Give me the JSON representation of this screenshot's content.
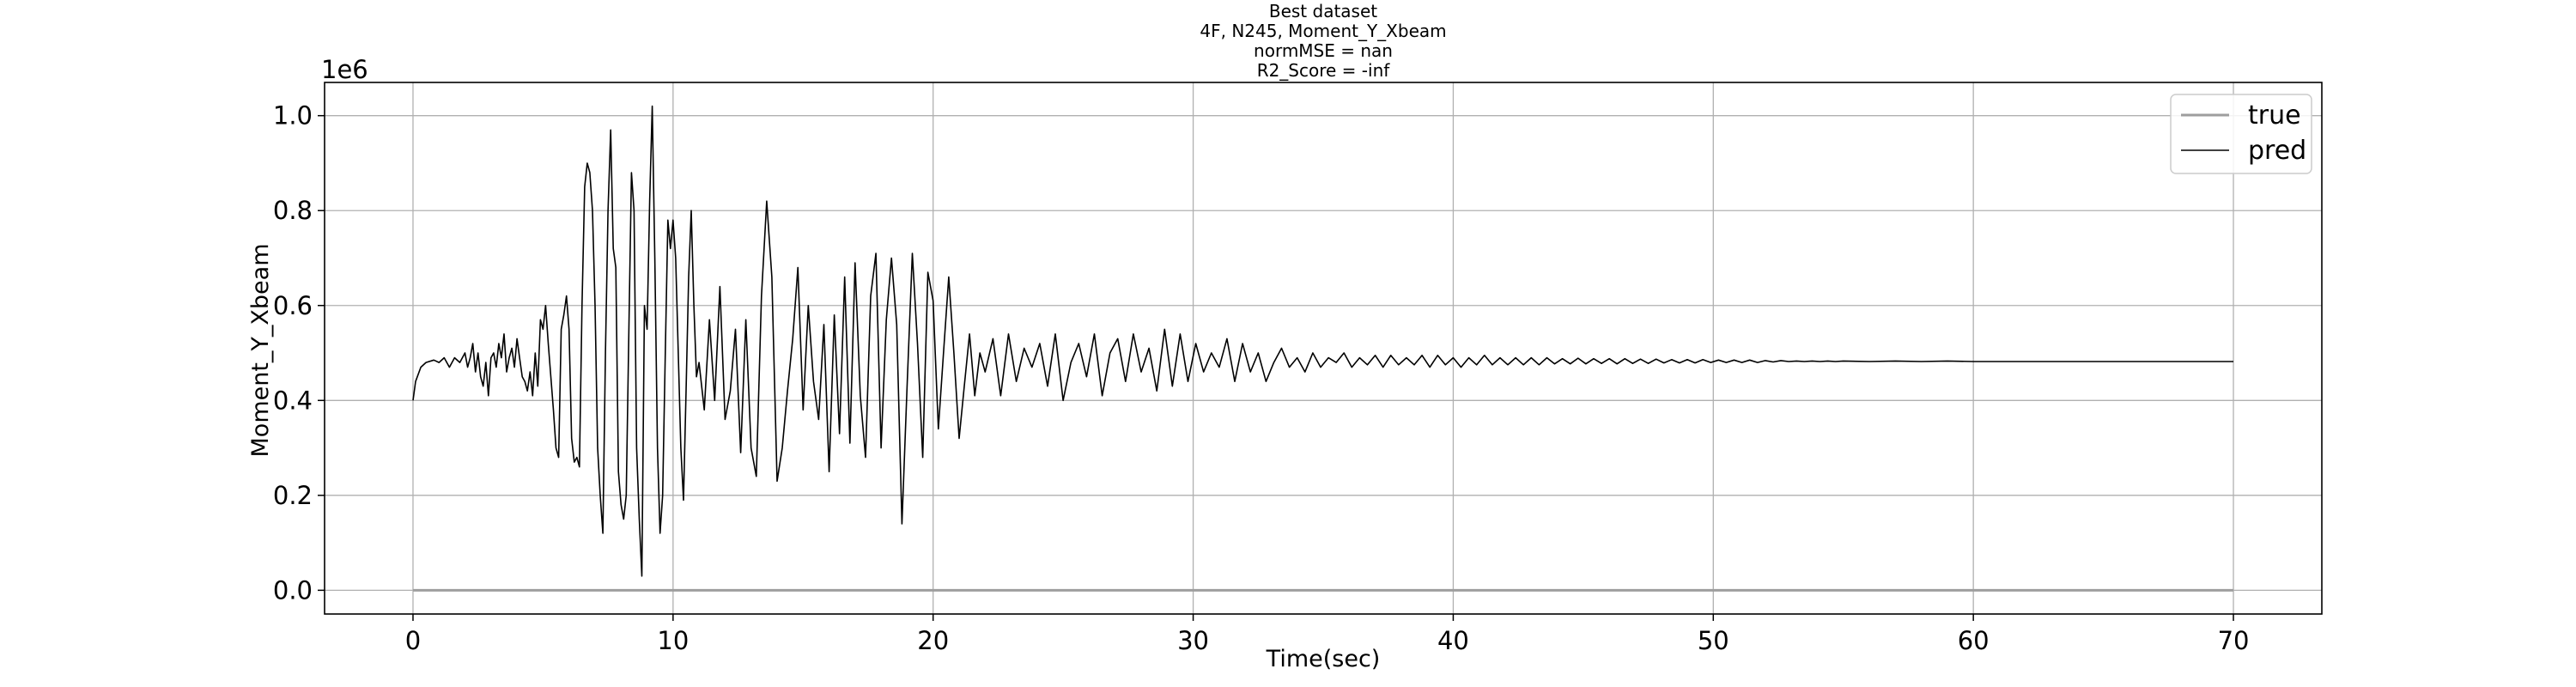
{
  "chart_data": {
    "type": "line",
    "title_lines": [
      "Best dataset",
      "4F, N245, Moment_Y_Xbeam",
      "normMSE = nan",
      "R2_Score = -inf"
    ],
    "xlabel": "Time(sec)",
    "ylabel": "Moment_Y_Xbeam",
    "y_offset_label": "1e6",
    "xlim": [
      -3.4,
      73.4
    ],
    "ylim": [
      -0.05,
      1.07
    ],
    "x_ticks": [
      0,
      10,
      20,
      30,
      40,
      50,
      60,
      70
    ],
    "x_tick_labels": [
      "0",
      "10",
      "20",
      "30",
      "40",
      "50",
      "60",
      "70"
    ],
    "y_ticks": [
      0.0,
      0.2,
      0.4,
      0.6,
      0.8,
      1.0
    ],
    "y_tick_labels": [
      "0.0",
      "0.2",
      "0.4",
      "0.6",
      "0.8",
      "1.0"
    ],
    "grid": true,
    "legend_position": "top-right",
    "series": [
      {
        "name": "true",
        "color": "#9e9e9e",
        "x": [
          0,
          70
        ],
        "y": [
          0.0,
          0.0
        ]
      },
      {
        "name": "pred",
        "color": "#000000",
        "x": [
          0.0,
          0.1,
          0.3,
          0.5,
          0.8,
          1.0,
          1.2,
          1.4,
          1.6,
          1.8,
          2.0,
          2.1,
          2.2,
          2.3,
          2.4,
          2.5,
          2.6,
          2.7,
          2.8,
          2.9,
          3.0,
          3.1,
          3.2,
          3.3,
          3.4,
          3.5,
          3.6,
          3.7,
          3.8,
          3.9,
          4.0,
          4.1,
          4.2,
          4.3,
          4.4,
          4.5,
          4.6,
          4.7,
          4.8,
          4.9,
          5.0,
          5.1,
          5.2,
          5.3,
          5.4,
          5.5,
          5.6,
          5.7,
          5.8,
          5.9,
          6.0,
          6.1,
          6.2,
          6.3,
          6.4,
          6.5,
          6.6,
          6.7,
          6.8,
          6.9,
          7.0,
          7.1,
          7.2,
          7.3,
          7.4,
          7.5,
          7.6,
          7.7,
          7.8,
          7.9,
          8.0,
          8.1,
          8.2,
          8.3,
          8.4,
          8.5,
          8.6,
          8.7,
          8.8,
          8.9,
          9.0,
          9.1,
          9.2,
          9.3,
          9.4,
          9.5,
          9.6,
          9.7,
          9.8,
          9.9,
          10.0,
          10.1,
          10.2,
          10.3,
          10.4,
          10.5,
          10.6,
          10.7,
          10.8,
          10.9,
          11.0,
          11.2,
          11.4,
          11.6,
          11.8,
          12.0,
          12.2,
          12.4,
          12.6,
          12.8,
          13.0,
          13.2,
          13.4,
          13.6,
          13.8,
          14.0,
          14.2,
          14.4,
          14.6,
          14.8,
          15.0,
          15.2,
          15.4,
          15.6,
          15.8,
          16.0,
          16.2,
          16.4,
          16.6,
          16.8,
          17.0,
          17.2,
          17.4,
          17.6,
          17.8,
          18.0,
          18.2,
          18.4,
          18.6,
          18.8,
          19.0,
          19.2,
          19.4,
          19.6,
          19.8,
          20.0,
          20.2,
          20.4,
          20.6,
          20.8,
          21.0,
          21.2,
          21.4,
          21.6,
          21.8,
          22.0,
          22.3,
          22.6,
          22.9,
          23.2,
          23.5,
          23.8,
          24.1,
          24.4,
          24.7,
          25.0,
          25.3,
          25.6,
          25.9,
          26.2,
          26.5,
          26.8,
          27.1,
          27.4,
          27.7,
          28.0,
          28.3,
          28.6,
          28.9,
          29.2,
          29.5,
          29.8,
          30.1,
          30.4,
          30.7,
          31.0,
          31.3,
          31.6,
          31.9,
          32.2,
          32.5,
          32.8,
          33.1,
          33.4,
          33.7,
          34.0,
          34.3,
          34.6,
          34.9,
          35.2,
          35.5,
          35.8,
          36.1,
          36.4,
          36.7,
          37.0,
          37.3,
          37.6,
          37.9,
          38.2,
          38.5,
          38.8,
          39.1,
          39.4,
          39.7,
          40.0,
          40.3,
          40.6,
          40.9,
          41.2,
          41.5,
          41.8,
          42.1,
          42.4,
          42.7,
          43.0,
          43.3,
          43.6,
          43.9,
          44.2,
          44.5,
          44.8,
          45.1,
          45.4,
          45.7,
          46.0,
          46.3,
          46.6,
          46.9,
          47.2,
          47.5,
          47.8,
          48.1,
          48.4,
          48.7,
          49.0,
          49.3,
          49.6,
          49.9,
          50.2,
          50.5,
          50.8,
          51.1,
          51.4,
          51.7,
          52.0,
          52.3,
          52.6,
          52.9,
          53.2,
          53.5,
          53.8,
          54.1,
          54.4,
          54.7,
          55.0,
          56.0,
          57.0,
          58.0,
          59.0,
          60.0,
          61.0,
          62.0,
          63.0,
          64.0,
          65.0,
          66.0,
          67.0,
          68.0,
          69.0,
          70.0
        ],
        "y": [
          0.4,
          0.44,
          0.47,
          0.48,
          0.485,
          0.48,
          0.49,
          0.47,
          0.49,
          0.48,
          0.5,
          0.47,
          0.49,
          0.52,
          0.46,
          0.5,
          0.45,
          0.43,
          0.48,
          0.41,
          0.49,
          0.5,
          0.47,
          0.52,
          0.49,
          0.54,
          0.46,
          0.49,
          0.51,
          0.47,
          0.53,
          0.49,
          0.45,
          0.44,
          0.42,
          0.46,
          0.41,
          0.5,
          0.43,
          0.57,
          0.55,
          0.6,
          0.52,
          0.45,
          0.38,
          0.3,
          0.28,
          0.55,
          0.58,
          0.62,
          0.55,
          0.32,
          0.27,
          0.28,
          0.26,
          0.6,
          0.85,
          0.9,
          0.88,
          0.8,
          0.6,
          0.3,
          0.2,
          0.12,
          0.5,
          0.8,
          0.97,
          0.72,
          0.68,
          0.25,
          0.18,
          0.15,
          0.2,
          0.55,
          0.88,
          0.8,
          0.3,
          0.15,
          0.03,
          0.6,
          0.55,
          0.82,
          1.02,
          0.7,
          0.3,
          0.12,
          0.2,
          0.5,
          0.78,
          0.72,
          0.78,
          0.7,
          0.5,
          0.3,
          0.19,
          0.42,
          0.66,
          0.8,
          0.6,
          0.45,
          0.48,
          0.38,
          0.57,
          0.4,
          0.64,
          0.36,
          0.42,
          0.55,
          0.29,
          0.57,
          0.3,
          0.24,
          0.62,
          0.82,
          0.66,
          0.23,
          0.3,
          0.42,
          0.53,
          0.68,
          0.38,
          0.6,
          0.44,
          0.36,
          0.56,
          0.25,
          0.58,
          0.33,
          0.66,
          0.31,
          0.69,
          0.41,
          0.28,
          0.62,
          0.71,
          0.3,
          0.57,
          0.7,
          0.56,
          0.14,
          0.43,
          0.71,
          0.52,
          0.28,
          0.67,
          0.61,
          0.34,
          0.5,
          0.66,
          0.5,
          0.32,
          0.43,
          0.54,
          0.41,
          0.5,
          0.46,
          0.53,
          0.41,
          0.54,
          0.44,
          0.51,
          0.47,
          0.52,
          0.43,
          0.54,
          0.4,
          0.48,
          0.52,
          0.45,
          0.54,
          0.41,
          0.5,
          0.53,
          0.44,
          0.54,
          0.46,
          0.51,
          0.42,
          0.55,
          0.43,
          0.54,
          0.44,
          0.52,
          0.46,
          0.5,
          0.47,
          0.53,
          0.44,
          0.52,
          0.46,
          0.5,
          0.44,
          0.48,
          0.51,
          0.47,
          0.49,
          0.46,
          0.5,
          0.47,
          0.49,
          0.48,
          0.5,
          0.47,
          0.49,
          0.475,
          0.495,
          0.47,
          0.495,
          0.475,
          0.49,
          0.475,
          0.495,
          0.47,
          0.495,
          0.475,
          0.49,
          0.47,
          0.49,
          0.475,
          0.495,
          0.475,
          0.49,
          0.475,
          0.49,
          0.475,
          0.49,
          0.475,
          0.49,
          0.477,
          0.488,
          0.477,
          0.489,
          0.477,
          0.488,
          0.478,
          0.488,
          0.477,
          0.488,
          0.478,
          0.487,
          0.478,
          0.487,
          0.479,
          0.486,
          0.479,
          0.486,
          0.479,
          0.486,
          0.48,
          0.485,
          0.48,
          0.485,
          0.48,
          0.485,
          0.48,
          0.484,
          0.481,
          0.484,
          0.482,
          0.483,
          0.482,
          0.483,
          0.482,
          0.483,
          0.482,
          0.483,
          0.482,
          0.483,
          0.482,
          0.483,
          0.482,
          0.482,
          0.482,
          0.482,
          0.482,
          0.482,
          0.482,
          0.482,
          0.482,
          0.482,
          0.482
        ]
      }
    ]
  }
}
